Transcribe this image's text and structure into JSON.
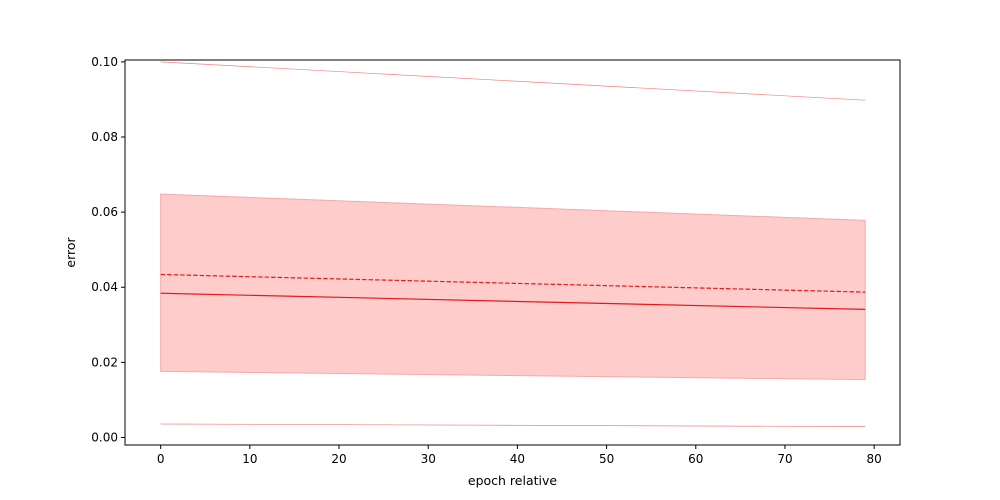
{
  "chart_data": {
    "type": "line",
    "title": "",
    "xlabel": "epoch relative",
    "ylabel": "error",
    "xlim": [
      -4,
      82.9
    ],
    "ylim": [
      -0.002,
      0.1005
    ],
    "xticks": [
      0,
      10,
      20,
      30,
      40,
      50,
      60,
      70,
      80
    ],
    "xtick_labels": [
      "0",
      "10",
      "20",
      "30",
      "40",
      "50",
      "60",
      "70",
      "80"
    ],
    "yticks": [
      0.0,
      0.02,
      0.04,
      0.06,
      0.08,
      0.1
    ],
    "ytick_labels": [
      "0.00",
      "0.02",
      "0.04",
      "0.06",
      "0.08",
      "0.10"
    ],
    "grid": false,
    "colors": {
      "line": "#e31a1c",
      "band_fill": "#ffcccc",
      "band_edge": "#f4aaaa",
      "thin": "#f08080"
    },
    "x": [
      0,
      79
    ],
    "series": [
      {
        "style": "solid",
        "values": [
          0.0384,
          0.0341
        ]
      },
      {
        "style": "dashed",
        "values": [
          0.0434,
          0.0387
        ]
      },
      {
        "style": "band",
        "lower": [
          0.0176,
          0.0154
        ],
        "upper": [
          0.0648,
          0.0578
        ]
      },
      {
        "style": "thin",
        "values": [
          0.1,
          0.0898
        ]
      },
      {
        "style": "thin",
        "values": [
          0.0036,
          0.0029
        ]
      }
    ]
  }
}
